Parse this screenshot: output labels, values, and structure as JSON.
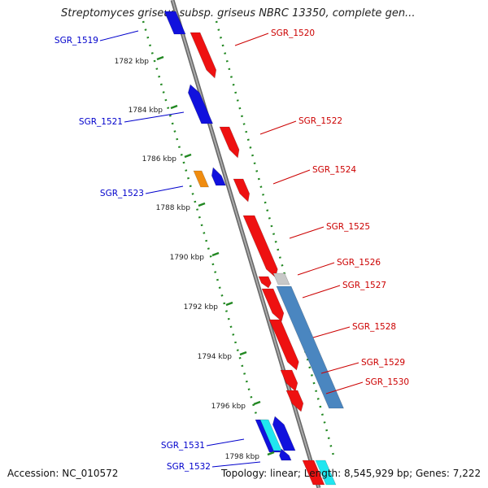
{
  "title": "Streptomyces griseus subsp. griseus NBRC 13350, complete gen...",
  "footer": {
    "accession": "Accession: NC_010572",
    "topology": "Topology: linear; Length: 8,545,929 bp; Genes: 7,222"
  },
  "colors": {
    "forward_gene": "#ee1111",
    "reverse_gene": "#1111dd",
    "label_forward": "#cc0000",
    "label_reverse": "#0000cc",
    "axis": "#888888",
    "ticks": "#228822",
    "orange_gene": "#f08c10",
    "cyan_gene": "#20e6f0",
    "gray_gene": "#c8c8c8",
    "long_feature": "#4a86c0"
  },
  "ticks": [
    {
      "label": "1782 kbp"
    },
    {
      "label": "1784 kbp"
    },
    {
      "label": "1786 kbp"
    },
    {
      "label": "1788 kbp"
    },
    {
      "label": "1790 kbp"
    },
    {
      "label": "1792 kbp"
    },
    {
      "label": "1794 kbp"
    },
    {
      "label": "1796 kbp"
    },
    {
      "label": "1798 kbp"
    }
  ],
  "genes": [
    {
      "label": "SGR_1519",
      "strand": "reverse"
    },
    {
      "label": "SGR_1520",
      "strand": "forward"
    },
    {
      "label": "SGR_1521",
      "strand": "reverse"
    },
    {
      "label": "SGR_1522",
      "strand": "forward"
    },
    {
      "label": "SGR_1523",
      "strand": "reverse"
    },
    {
      "label": "SGR_1524",
      "strand": "forward"
    },
    {
      "label": "SGR_1525",
      "strand": "forward"
    },
    {
      "label": "SGR_1526",
      "strand": "forward"
    },
    {
      "label": "SGR_1527",
      "strand": "forward"
    },
    {
      "label": "SGR_1528",
      "strand": "forward"
    },
    {
      "label": "SGR_1529",
      "strand": "forward"
    },
    {
      "label": "SGR_1530",
      "strand": "forward"
    },
    {
      "label": "SGR_1531",
      "strand": "reverse"
    },
    {
      "label": "SGR_1532",
      "strand": "reverse"
    }
  ]
}
